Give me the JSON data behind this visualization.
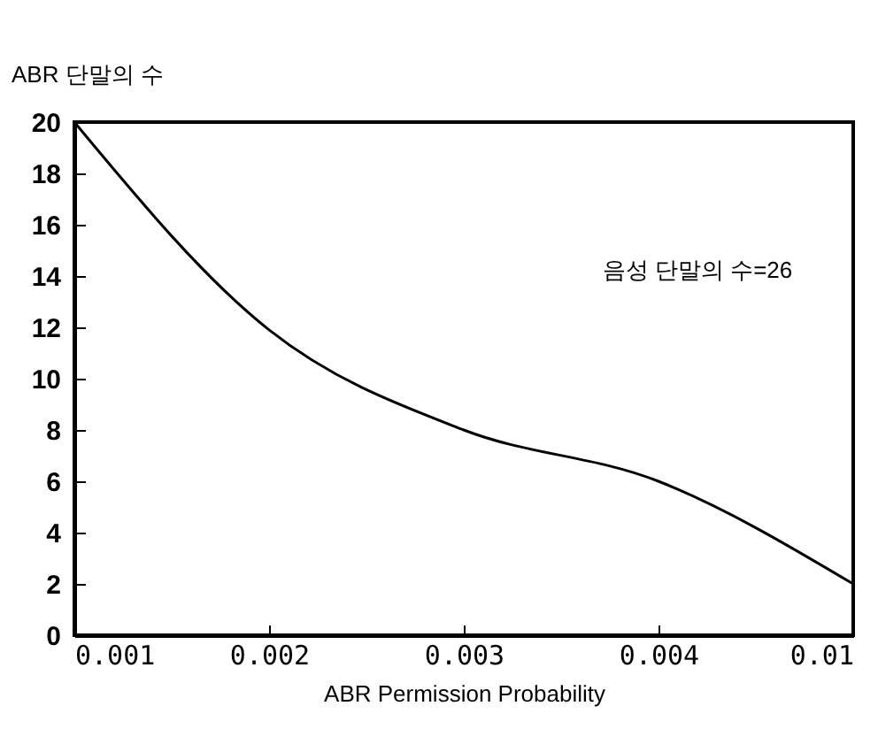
{
  "chart_data": {
    "type": "line",
    "ylabel": "ABR 단말의 수",
    "xlabel": "ABR Permission Probability",
    "categories": [
      "0.001",
      "0.002",
      "0.003",
      "0.004",
      "0.01"
    ],
    "series": [
      {
        "color": "#000000",
        "values": [
          20,
          11.9,
          8,
          6,
          2
        ]
      }
    ],
    "ylim": [
      0,
      20
    ],
    "yticks": [
      0,
      2,
      4,
      6,
      8,
      10,
      12,
      14,
      16,
      18,
      20
    ],
    "annotations": [
      "음성 단말의 수=26"
    ],
    "grid": false,
    "legend": false,
    "marker": "none",
    "line_style": "solid"
  }
}
